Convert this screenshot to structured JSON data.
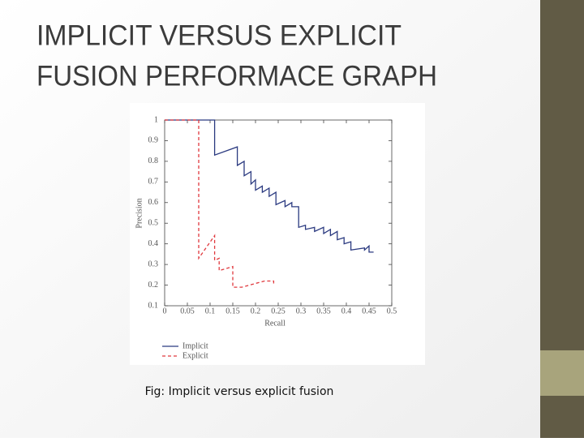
{
  "slide_title": [
    "IMPLICIT VERSUS EXPLICIT",
    "FUSION PERFORMACE GRAPH"
  ],
  "caption": "Fig: Implicit versus explicit fusion",
  "chart_data": {
    "type": "line",
    "xlabel": "Recall",
    "ylabel": "Precision",
    "xlim": [
      0,
      0.5
    ],
    "ylim": [
      0.1,
      1
    ],
    "xticks": [
      0,
      0.05,
      0.1,
      0.15,
      0.2,
      0.25,
      0.3,
      0.35,
      0.4,
      0.45,
      0.5
    ],
    "yticks": [
      0.1,
      0.2,
      0.3,
      0.4,
      0.5,
      0.6,
      0.7,
      0.8,
      0.9,
      1
    ],
    "legend": "bottom-left",
    "series": [
      {
        "name": "Implicit",
        "color": "#2b3a80",
        "style": "solid",
        "x": [
          0,
          0.11,
          0.11,
          0.16,
          0.16,
          0.175,
          0.175,
          0.19,
          0.19,
          0.2,
          0.2,
          0.215,
          0.215,
          0.23,
          0.23,
          0.245,
          0.245,
          0.265,
          0.265,
          0.28,
          0.28,
          0.295,
          0.295,
          0.31,
          0.31,
          0.33,
          0.33,
          0.35,
          0.35,
          0.365,
          0.365,
          0.38,
          0.38,
          0.395,
          0.395,
          0.41,
          0.41,
          0.44,
          0.44,
          0.45,
          0.45,
          0.46
        ],
        "values": [
          1,
          1,
          0.83,
          0.87,
          0.78,
          0.8,
          0.73,
          0.75,
          0.69,
          0.71,
          0.66,
          0.68,
          0.65,
          0.67,
          0.63,
          0.65,
          0.59,
          0.61,
          0.58,
          0.6,
          0.58,
          0.58,
          0.48,
          0.49,
          0.47,
          0.48,
          0.46,
          0.48,
          0.45,
          0.47,
          0.44,
          0.46,
          0.42,
          0.43,
          0.4,
          0.41,
          0.37,
          0.38,
          0.37,
          0.39,
          0.36,
          0.36
        ]
      },
      {
        "name": "Explicit",
        "color": "#e0393e",
        "style": "dashed",
        "x": [
          0,
          0.075,
          0.075,
          0.11,
          0.11,
          0.12,
          0.12,
          0.15,
          0.15,
          0.17,
          0.22,
          0.24,
          0.24
        ],
        "values": [
          1,
          1,
          0.33,
          0.44,
          0.32,
          0.33,
          0.27,
          0.29,
          0.19,
          0.19,
          0.22,
          0.22,
          0.2
        ]
      }
    ]
  }
}
